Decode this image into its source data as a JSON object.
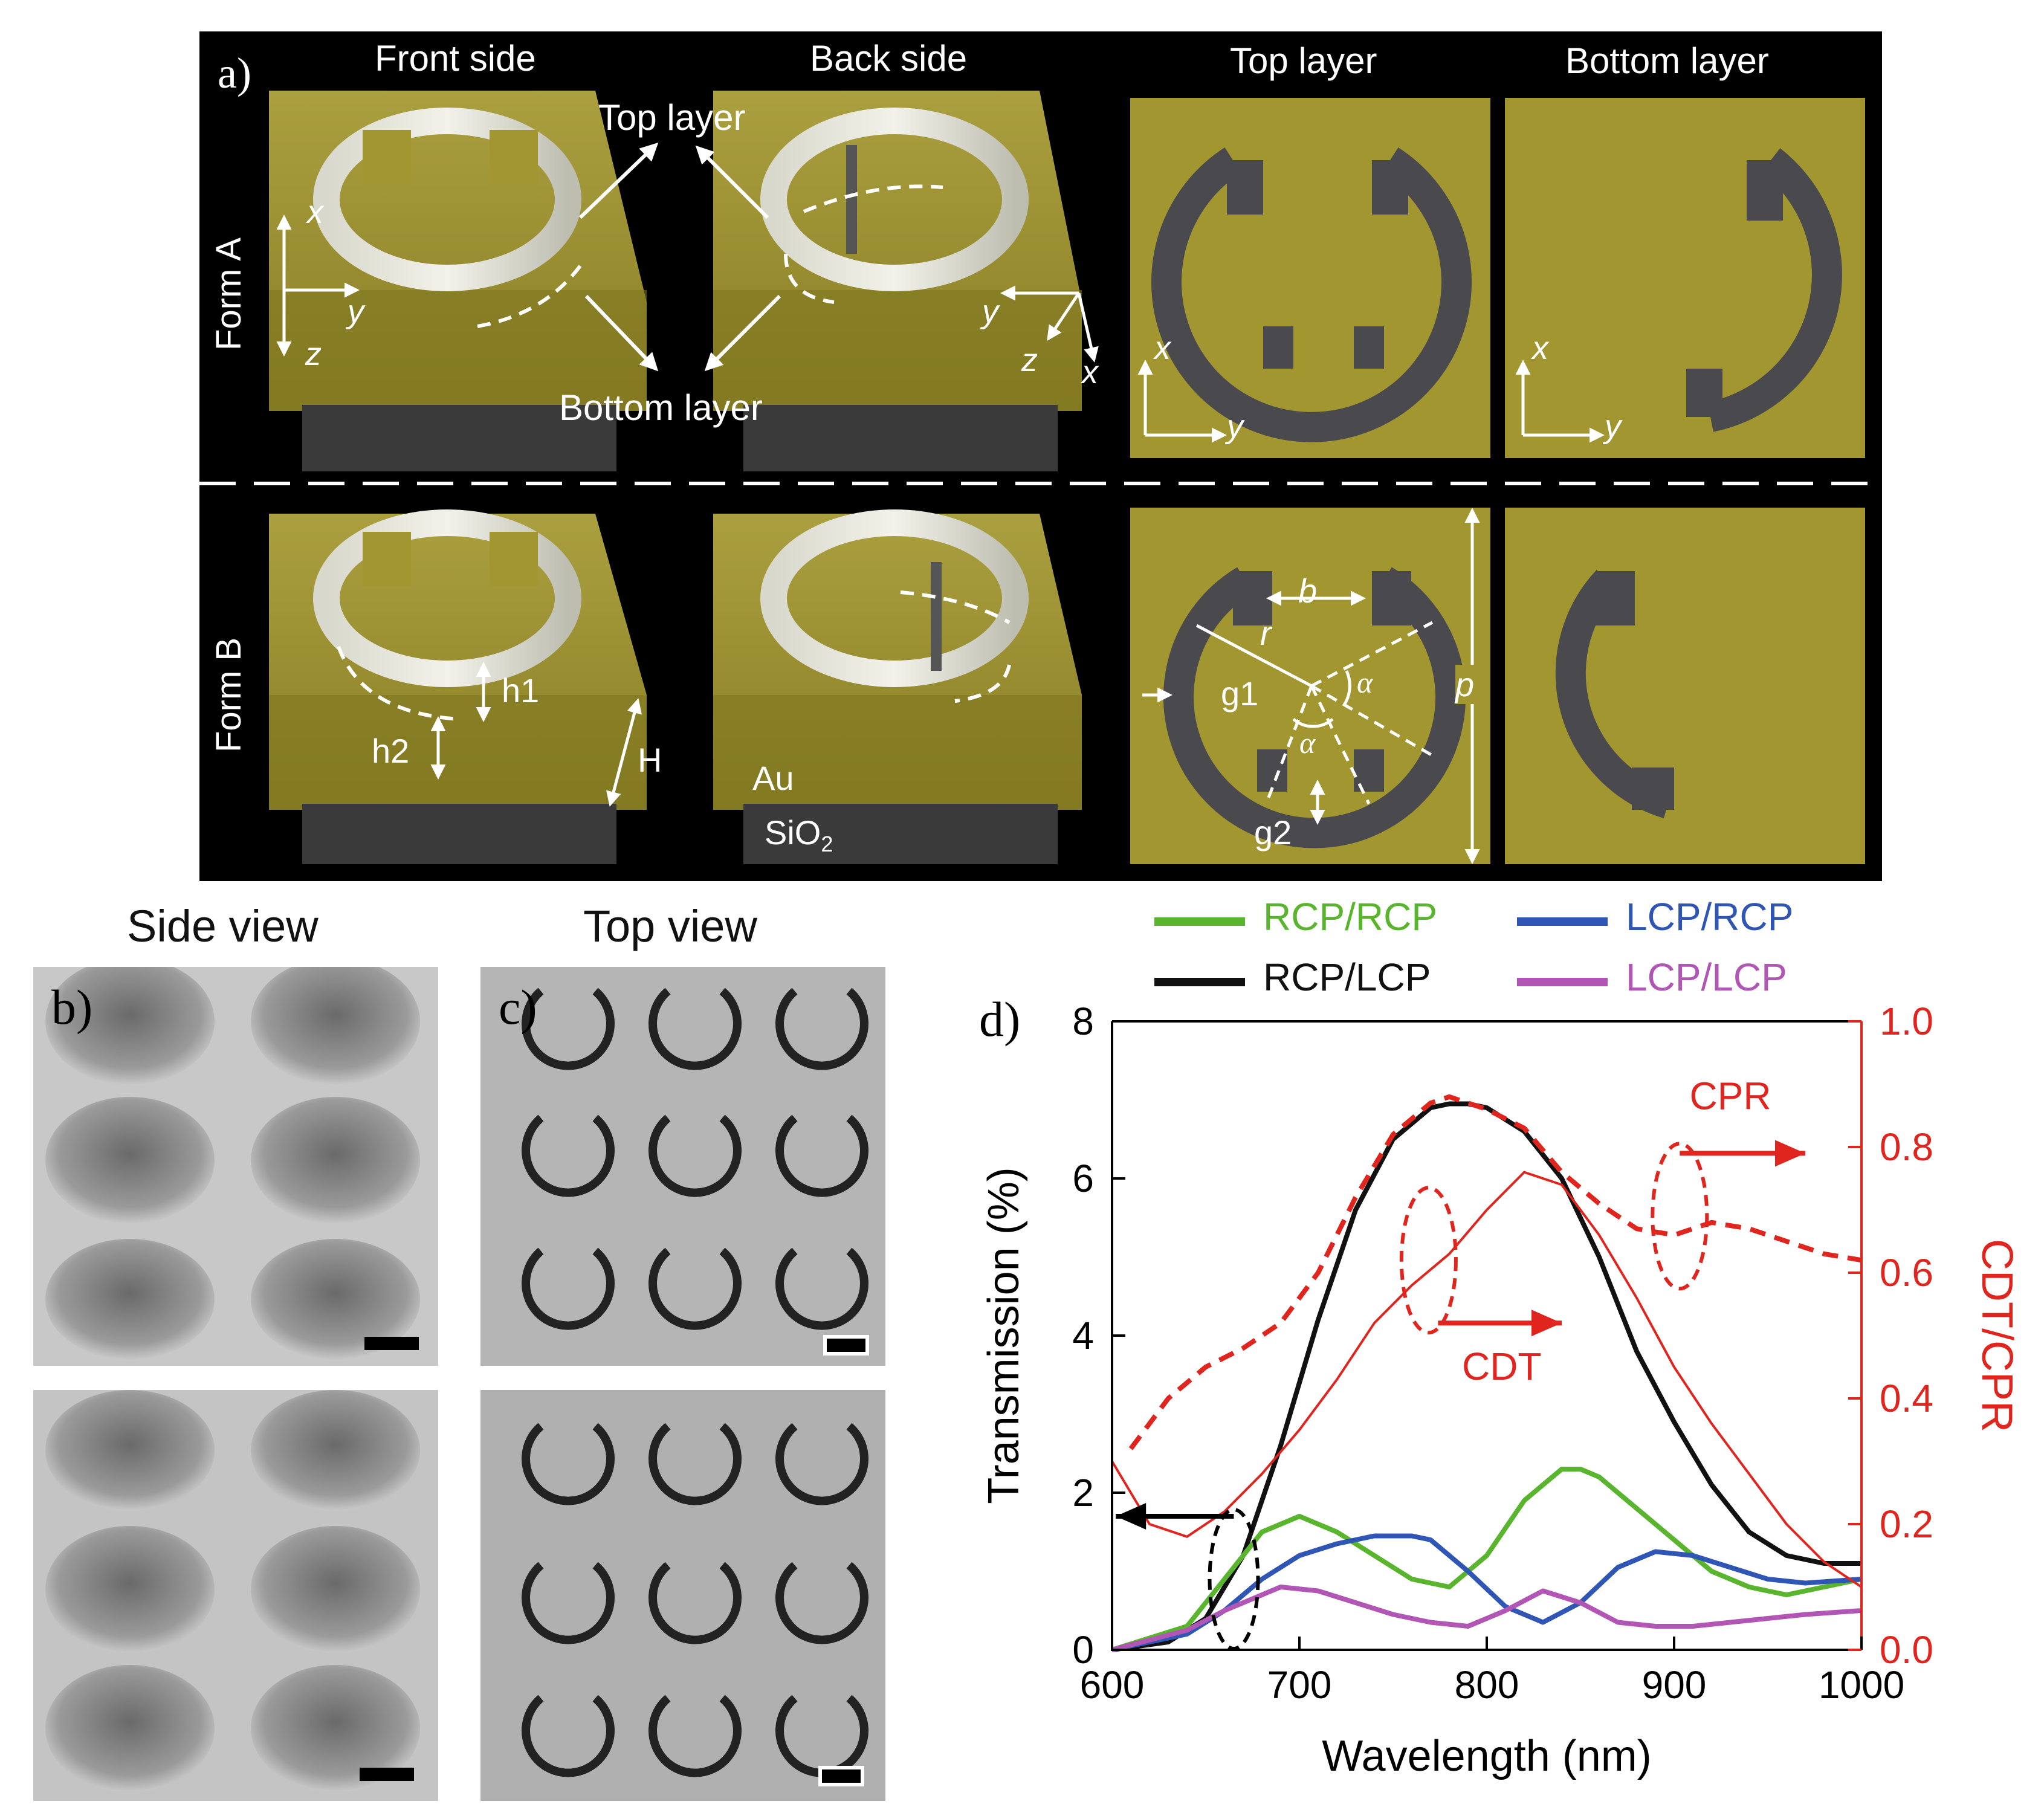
{
  "panel_a": {
    "label": "a)",
    "columns": [
      "Front side",
      "Back side",
      "Top layer",
      "Bottom layer"
    ],
    "rows": [
      "Form A",
      "Form B"
    ],
    "arrow_labels": {
      "top_layer": "Top layer",
      "bottom_layer": "Bottom layer"
    },
    "axes": {
      "x": "x",
      "y": "y",
      "z": "z"
    },
    "dimensions": {
      "h1": "h1",
      "h2": "h2",
      "H": "H",
      "b": "b",
      "r": "r",
      "g1": "g1",
      "g2": "g2",
      "alpha": "α",
      "p": "p"
    },
    "materials": {
      "au": "Au",
      "sio2": "SiO",
      "sio2_sub": "2"
    },
    "colors": {
      "gold": "#a29630",
      "ring": "#4a4a4e",
      "panel_bg": "#000000"
    }
  },
  "panel_b": {
    "label": "b)",
    "title": "Side view"
  },
  "panel_c": {
    "label": "c)",
    "title": "Top view"
  },
  "panel_d": {
    "label": "d)"
  },
  "chart_data": {
    "type": "line",
    "xlabel": "Wavelength (nm)",
    "ylabel": "Transmission (%)",
    "y2label": "CDT/CPR",
    "xlim": [
      600,
      1000
    ],
    "ylim": [
      0,
      8
    ],
    "y2lim": [
      0.0,
      1.0
    ],
    "xticks": [
      "600",
      "700",
      "800",
      "900",
      "1000"
    ],
    "yticks": [
      "0",
      "2",
      "4",
      "6",
      "8"
    ],
    "y2ticks": [
      "0.0",
      "0.2",
      "0.4",
      "0.6",
      "0.8",
      "1.0"
    ],
    "legend": [
      "RCP/RCP",
      "LCP/RCP",
      "RCP/LCP",
      "LCP/LCP"
    ],
    "annotations": {
      "cpr": "CPR",
      "cdt": "CDT"
    },
    "series": [
      {
        "name": "RCP/LCP",
        "axis": "left",
        "color": "#111111",
        "x": [
          600,
          630,
          650,
          670,
          690,
          710,
          730,
          750,
          770,
          780,
          790,
          800,
          820,
          840,
          860,
          880,
          900,
          920,
          940,
          960,
          980,
          1000
        ],
        "y": [
          0.0,
          0.1,
          0.4,
          1.2,
          2.6,
          4.2,
          5.6,
          6.5,
          6.9,
          6.95,
          6.95,
          6.9,
          6.6,
          6.0,
          5.0,
          3.8,
          2.9,
          2.1,
          1.5,
          1.2,
          1.1,
          1.1
        ]
      },
      {
        "name": "RCP/RCP",
        "axis": "left",
        "color": "#5ab52e",
        "x": [
          600,
          640,
          660,
          680,
          700,
          720,
          740,
          760,
          780,
          800,
          820,
          840,
          850,
          860,
          880,
          900,
          920,
          940,
          960,
          980,
          1000
        ],
        "y": [
          0.0,
          0.3,
          0.9,
          1.5,
          1.7,
          1.5,
          1.2,
          0.9,
          0.8,
          1.2,
          1.9,
          2.3,
          2.3,
          2.2,
          1.8,
          1.4,
          1.0,
          0.8,
          0.7,
          0.8,
          0.9
        ]
      },
      {
        "name": "LCP/RCP",
        "axis": "left",
        "color": "#2f55b5",
        "x": [
          600,
          640,
          660,
          680,
          700,
          720,
          740,
          760,
          770,
          790,
          810,
          830,
          850,
          870,
          890,
          910,
          930,
          950,
          970,
          1000
        ],
        "y": [
          0.0,
          0.2,
          0.5,
          0.9,
          1.2,
          1.35,
          1.45,
          1.45,
          1.4,
          1.0,
          0.55,
          0.35,
          0.6,
          1.05,
          1.25,
          1.2,
          1.05,
          0.9,
          0.85,
          0.9
        ]
      },
      {
        "name": "LCP/LCP",
        "axis": "left",
        "color": "#b156b5",
        "x": [
          600,
          640,
          660,
          690,
          710,
          730,
          750,
          770,
          790,
          810,
          830,
          850,
          870,
          890,
          910,
          930,
          950,
          970,
          1000
        ],
        "y": [
          0.0,
          0.25,
          0.5,
          0.8,
          0.75,
          0.6,
          0.45,
          0.35,
          0.3,
          0.5,
          0.75,
          0.6,
          0.35,
          0.3,
          0.3,
          0.35,
          0.4,
          0.45,
          0.5
        ]
      },
      {
        "name": "CPR",
        "axis": "right",
        "style": "dashed",
        "color": "#e0241e",
        "x": [
          610,
          630,
          650,
          670,
          690,
          710,
          730,
          750,
          770,
          780,
          800,
          820,
          840,
          860,
          880,
          900,
          920,
          940,
          960,
          980,
          1000
        ],
        "y": [
          0.32,
          0.4,
          0.45,
          0.48,
          0.52,
          0.6,
          0.72,
          0.82,
          0.87,
          0.88,
          0.86,
          0.83,
          0.76,
          0.71,
          0.67,
          0.66,
          0.68,
          0.67,
          0.65,
          0.63,
          0.62
        ]
      },
      {
        "name": "CDT",
        "axis": "right",
        "color": "#e0241e",
        "x": [
          600,
          620,
          640,
          660,
          680,
          700,
          720,
          740,
          760,
          780,
          800,
          820,
          840,
          860,
          880,
          900,
          920,
          940,
          960,
          980,
          1000
        ],
        "y": [
          0.3,
          0.2,
          0.18,
          0.22,
          0.28,
          0.35,
          0.43,
          0.52,
          0.58,
          0.63,
          0.7,
          0.76,
          0.74,
          0.66,
          0.56,
          0.45,
          0.36,
          0.28,
          0.2,
          0.14,
          0.1
        ]
      }
    ]
  }
}
